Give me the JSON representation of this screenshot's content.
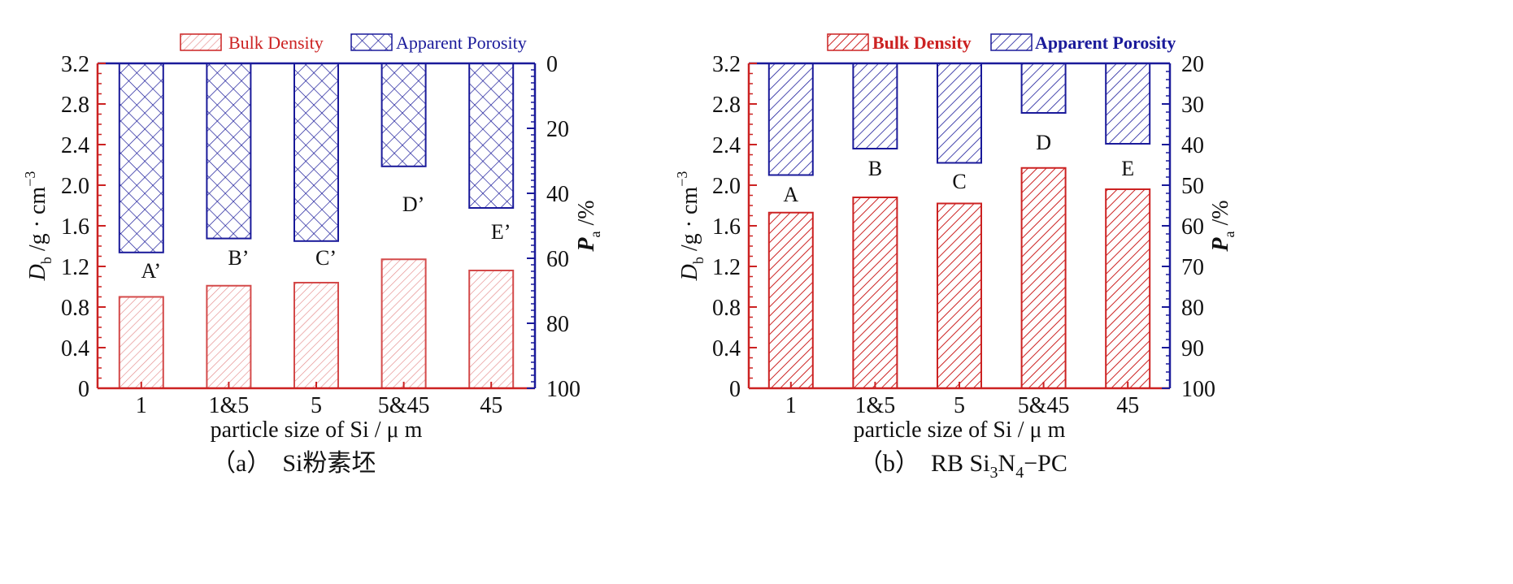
{
  "colors": {
    "bulk": "#cc2222",
    "porosity": "#1a1a9a",
    "text": "#111111"
  },
  "chart_data": [
    {
      "type": "bar",
      "caption_prefix": "（a）",
      "caption_text": "Si粉素坯",
      "categories": [
        "1",
        "1&5",
        "5",
        "5&45",
        "45"
      ],
      "xlabel": "particle size of Si / μ m",
      "ylabel_main": "D",
      "ylabel_sub": "b",
      "ylabel_rest": " /g · cm",
      "ylabel_sup": "−3",
      "y2label_main": "P",
      "y2label_sub": "a",
      "y2label_rest": " /%",
      "ylim": [
        0,
        3.2
      ],
      "yticks": [
        "0",
        "0.4",
        "0.8",
        "1.2",
        "1.6",
        "2.0",
        "2.4",
        "2.8",
        "3.2"
      ],
      "y2lim": [
        0,
        100
      ],
      "y2ticks": [
        "0",
        "20",
        "40",
        "60",
        "80",
        "100"
      ],
      "y2_inverted": true,
      "legend": {
        "position": "top",
        "bulk": "Bulk Density",
        "porosity": "Apparent Porosity"
      },
      "series": [
        {
          "name": "Bulk Density",
          "axis": "left",
          "values": [
            0.9,
            1.01,
            1.04,
            1.27,
            1.16
          ]
        },
        {
          "name": "Apparent Porosity",
          "axis": "right",
          "values": [
            58.2,
            53.9,
            54.7,
            31.7,
            44.5
          ]
        }
      ],
      "bar_labels": [
        "A’",
        "B’",
        "C’",
        "D’",
        "E’"
      ]
    },
    {
      "type": "bar",
      "caption_prefix": "（b）",
      "caption_text": "RB Si",
      "caption_sub1": "3",
      "caption_mid": "N",
      "caption_sub2": "4",
      "caption_end": "−PC",
      "categories": [
        "1",
        "1&5",
        "5",
        "5&45",
        "45"
      ],
      "xlabel": "particle size of Si / μ m",
      "ylabel_main": "D",
      "ylabel_sub": "b",
      "ylabel_rest": " /g · cm",
      "ylabel_sup": "−3",
      "y2label_main": "P",
      "y2label_sub": "a",
      "y2label_rest": " /%",
      "ylim": [
        0,
        3.2
      ],
      "yticks": [
        "0",
        "0.4",
        "0.8",
        "1.2",
        "1.6",
        "2.0",
        "2.4",
        "2.8",
        "3.2"
      ],
      "y2lim": [
        20,
        100
      ],
      "y2ticks": [
        "20",
        "30",
        "40",
        "50",
        "60",
        "70",
        "80",
        "90",
        "100"
      ],
      "y2_inverted": true,
      "legend": {
        "position": "top",
        "bulk": "Bulk Density",
        "porosity": "Apparent Porosity"
      },
      "series": [
        {
          "name": "Bulk Density",
          "axis": "left",
          "values": [
            1.73,
            1.88,
            1.82,
            2.17,
            1.96
          ]
        },
        {
          "name": "Apparent Porosity",
          "axis": "right",
          "values": [
            47.5,
            41.0,
            44.5,
            32.2,
            39.8
          ]
        }
      ],
      "bar_labels": [
        "A",
        "B",
        "C",
        "D",
        "E"
      ]
    }
  ]
}
